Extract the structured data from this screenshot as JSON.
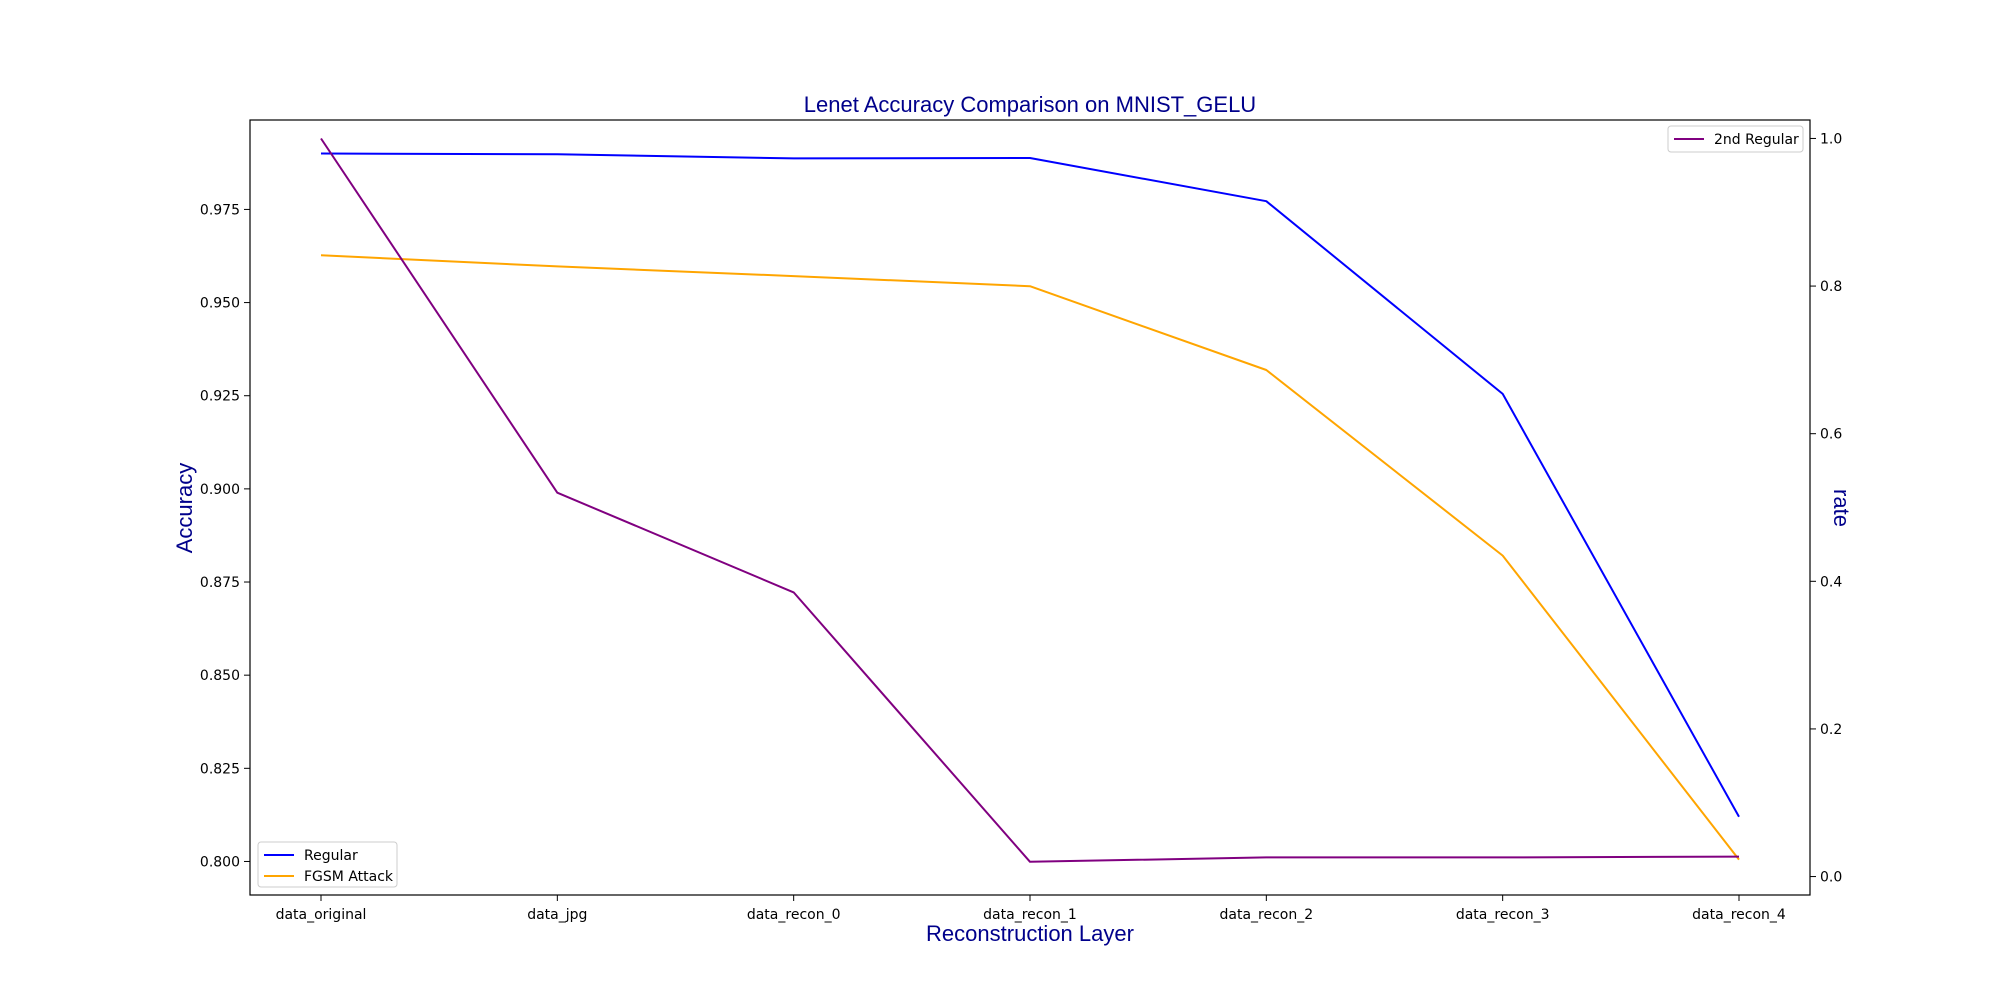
{
  "chart_data": {
    "type": "line",
    "title": "Lenet Accuracy Comparison on MNIST_GELU",
    "xlabel": "Reconstruction Layer",
    "ylabel": "Accuracy",
    "y2label": "rate",
    "categories": [
      "data_original",
      "data_jpg",
      "data_recon_0",
      "data_recon_1",
      "data_recon_2",
      "data_recon_3",
      "data_recon_4"
    ],
    "ylim": [
      0.791,
      0.999
    ],
    "y2lim": [
      -0.025,
      1.025
    ],
    "yticks": [
      "0.800",
      "0.825",
      "0.850",
      "0.875",
      "0.900",
      "0.925",
      "0.950",
      "0.975"
    ],
    "y2ticks": [
      "0.0",
      "0.2",
      "0.4",
      "0.6",
      "0.8",
      "1.0"
    ],
    "grid": false,
    "series": [
      {
        "name": "Regular",
        "axis": "left",
        "color": "#0000ff",
        "values": [
          0.99,
          0.9898,
          0.9887,
          0.9888,
          0.9772,
          0.9255,
          0.812
        ]
      },
      {
        "name": "FGSM Attack",
        "axis": "left",
        "color": "#ffa500",
        "values": [
          0.9627,
          0.9597,
          0.9571,
          0.9544,
          0.9319,
          0.8821,
          0.8005
        ]
      },
      {
        "name": "2nd Regular",
        "axis": "right",
        "color": "#800080",
        "values": [
          1.0,
          0.52,
          0.385,
          0.02,
          0.026,
          0.026,
          0.027
        ]
      }
    ],
    "legend_left_placement": "lower-left",
    "legend_right_placement": "upper-right"
  }
}
